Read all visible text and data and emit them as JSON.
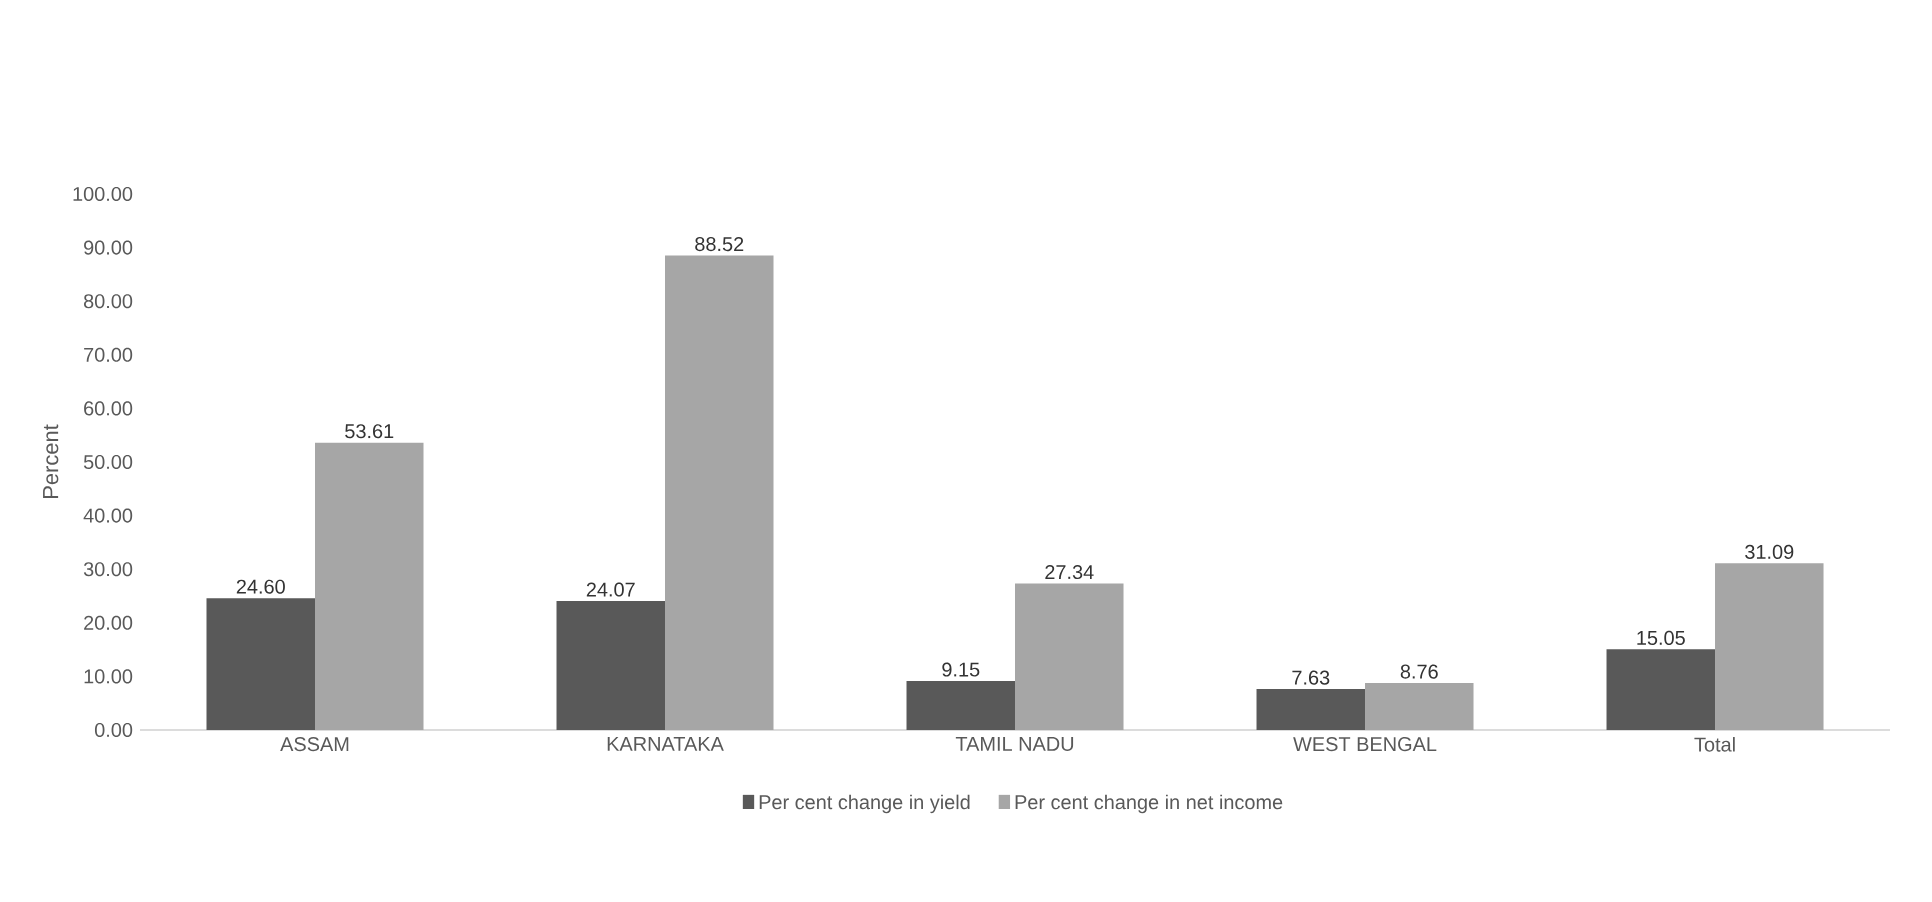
{
  "chart_data": {
    "type": "bar",
    "ylabel": "Percent",
    "categories": [
      "ASSAM",
      "KARNATAKA",
      "TAMIL NADU",
      "WEST BENGAL",
      "Total"
    ],
    "series": [
      {
        "name": "Per cent change in yield",
        "color": "#595959",
        "values": [
          24.6,
          24.07,
          9.15,
          7.63,
          15.05
        ],
        "value_labels": [
          "24.60",
          "24.07",
          "9.15",
          "7.63",
          "15.05"
        ]
      },
      {
        "name": "Per cent change in net income",
        "color": "#a6a6a6",
        "values": [
          53.61,
          88.52,
          27.34,
          8.76,
          31.09
        ],
        "value_labels": [
          "53.61",
          "88.52",
          "27.34",
          "8.76",
          "31.09"
        ]
      }
    ],
    "ylim": [
      0,
      100
    ],
    "yticks": [
      {
        "value": 0,
        "label": "0.00"
      },
      {
        "value": 10,
        "label": "10.00"
      },
      {
        "value": 20,
        "label": "20.00"
      },
      {
        "value": 30,
        "label": "30.00"
      },
      {
        "value": 40,
        "label": "40.00"
      },
      {
        "value": 50,
        "label": "50.00"
      },
      {
        "value": 60,
        "label": "60.00"
      },
      {
        "value": 70,
        "label": "70.00"
      },
      {
        "value": 80,
        "label": "80.00"
      },
      {
        "value": 90,
        "label": "90.00"
      },
      {
        "value": 100,
        "label": "100.00"
      }
    ],
    "legend": "bottom"
  }
}
